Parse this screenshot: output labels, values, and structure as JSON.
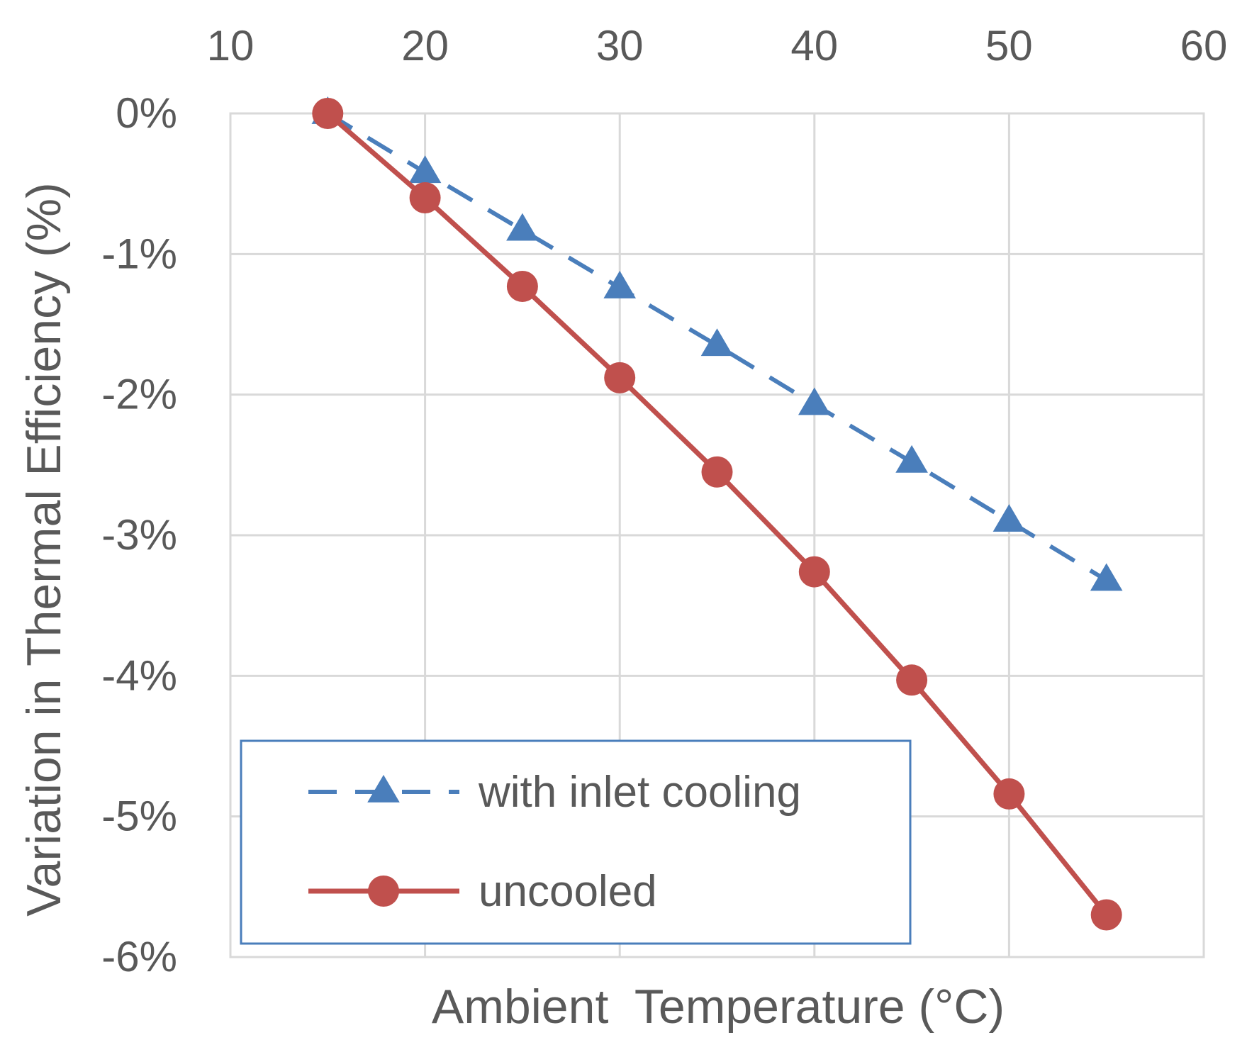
{
  "chart_data": {
    "type": "line",
    "title": "",
    "xlabel": "Ambient  Temperature (°C)",
    "ylabel": "Variation in Thermal Efficiency (%)",
    "xlim": [
      10,
      60
    ],
    "ylim": [
      -6,
      0
    ],
    "x_axis_position": "top",
    "grid": true,
    "x_ticks": [
      10,
      20,
      30,
      40,
      50,
      60
    ],
    "x_tick_labels": [
      "10",
      "20",
      "30",
      "40",
      "50",
      "60"
    ],
    "y_ticks": [
      0,
      -1,
      -2,
      -3,
      -4,
      -5,
      -6
    ],
    "y_tick_labels": [
      "0%",
      "-1%",
      "-2%",
      "-3%",
      "-4%",
      "-5%",
      "-6%"
    ],
    "legend_position": "bottom-left",
    "series": [
      {
        "name": "with inlet cooling",
        "color": "#4a7ebb",
        "marker": "triangle",
        "line_style": "dashed",
        "x": [
          15,
          20,
          25,
          30,
          35,
          40,
          45,
          50,
          55
        ],
        "values": [
          0,
          -0.42,
          -0.83,
          -1.24,
          -1.65,
          -2.07,
          -2.48,
          -2.9,
          -3.32
        ]
      },
      {
        "name": "uncooled",
        "color": "#c0504d",
        "marker": "circle",
        "line_style": "solid",
        "x": [
          15,
          20,
          25,
          30,
          35,
          40,
          45,
          50,
          55
        ],
        "values": [
          0,
          -0.6,
          -1.23,
          -1.88,
          -2.55,
          -3.26,
          -4.03,
          -4.84,
          -5.7
        ]
      }
    ]
  }
}
